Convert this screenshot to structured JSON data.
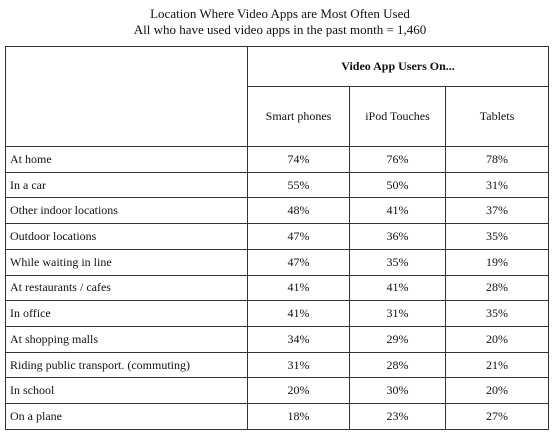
{
  "chart_data": {
    "type": "table",
    "title": "Location Where Video Apps are Most Often Used",
    "subtitle": "All who have used video apps in the past month = 1,460",
    "group_header": "Video App Users On...",
    "columns": [
      "Smart phones",
      "iPod Touches",
      "Tablets"
    ],
    "rows": [
      {
        "label": "At home",
        "values": [
          "74%",
          "76%",
          "78%"
        ]
      },
      {
        "label": "In a car",
        "values": [
          "55%",
          "50%",
          "31%"
        ]
      },
      {
        "label": "Other indoor locations",
        "values": [
          "48%",
          "41%",
          "37%"
        ]
      },
      {
        "label": "Outdoor locations",
        "values": [
          "47%",
          "36%",
          "35%"
        ]
      },
      {
        "label": "While waiting in line",
        "values": [
          "47%",
          "35%",
          "19%"
        ]
      },
      {
        "label": "At restaurants / cafes",
        "values": [
          "41%",
          "41%",
          "28%"
        ]
      },
      {
        "label": "In office",
        "values": [
          "41%",
          "31%",
          "35%"
        ]
      },
      {
        "label": "At shopping malls",
        "values": [
          "34%",
          "29%",
          "20%"
        ]
      },
      {
        "label": "Riding public transport. (commuting)",
        "values": [
          "31%",
          "28%",
          "21%"
        ]
      },
      {
        "label": "In school",
        "values": [
          "20%",
          "30%",
          "20%"
        ]
      },
      {
        "label": "On a plane",
        "values": [
          "18%",
          "23%",
          "27%"
        ]
      }
    ]
  }
}
